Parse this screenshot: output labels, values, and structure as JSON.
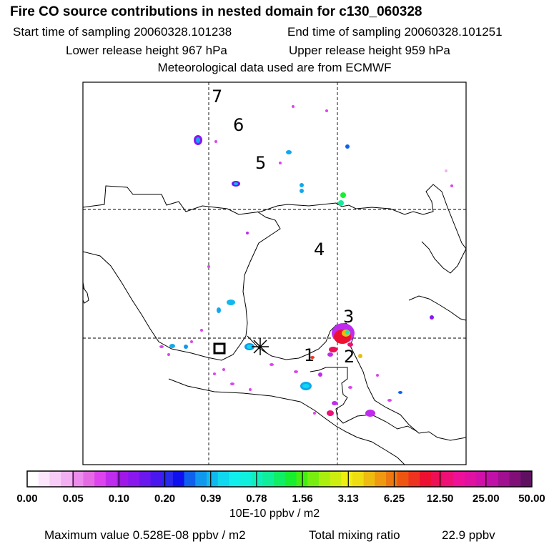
{
  "header": {
    "title": "Fire CO source contributions in nested domain for c130_060328",
    "start_time": "Start time of sampling 20060328.101238",
    "end_time": "End time of sampling 20060328.101251",
    "lower_release": "Lower release height  967 hPa",
    "upper_release": "Upper release height  959 hPa",
    "met_data": "Meteorological data used are from ECMWF"
  },
  "map": {
    "trajectory_labels": [
      "1",
      "2",
      "3",
      "4",
      "5",
      "6",
      "7"
    ]
  },
  "colorbar": {
    "tick_labels": [
      "0.00",
      "0.05",
      "0.10",
      "0.20",
      "0.39",
      "0.78",
      "1.56",
      "3.13",
      "6.25",
      "12.50",
      "25.00",
      "50.00"
    ],
    "colors": [
      "#ffffff",
      "#fbe6fb",
      "#f7ccf7",
      "#f2b0f2",
      "#ec8cec",
      "#e56be5",
      "#dd44ee",
      "#c02cee",
      "#a018e8",
      "#8a18ee",
      "#6a18ee",
      "#4a18ee",
      "#2828ee",
      "#1010ee",
      "#1060ee",
      "#1098ee",
      "#10b8ee",
      "#10d8ee",
      "#10eeee",
      "#10eedd",
      "#10eebb",
      "#10ee99",
      "#10ee66",
      "#18ee30",
      "#44ee10",
      "#77ee10",
      "#aaee10",
      "#ccee10",
      "#eeee10",
      "#eedd10",
      "#eebb10",
      "#ee9910",
      "#ee7710",
      "#ee5510",
      "#ee3320",
      "#ee1030",
      "#ee1055",
      "#ee1077",
      "#ee1099",
      "#e010a0",
      "#d010a8",
      "#c010a8",
      "#a01090",
      "#801078",
      "#601060"
    ],
    "unit": "10E-10 ppbv / m2"
  },
  "footer": {
    "max_value": "Maximum value  0.528E-08 ppbv / m2",
    "total_label": "Total mixing ratio",
    "total_value": "22.9 ppbv"
  }
}
